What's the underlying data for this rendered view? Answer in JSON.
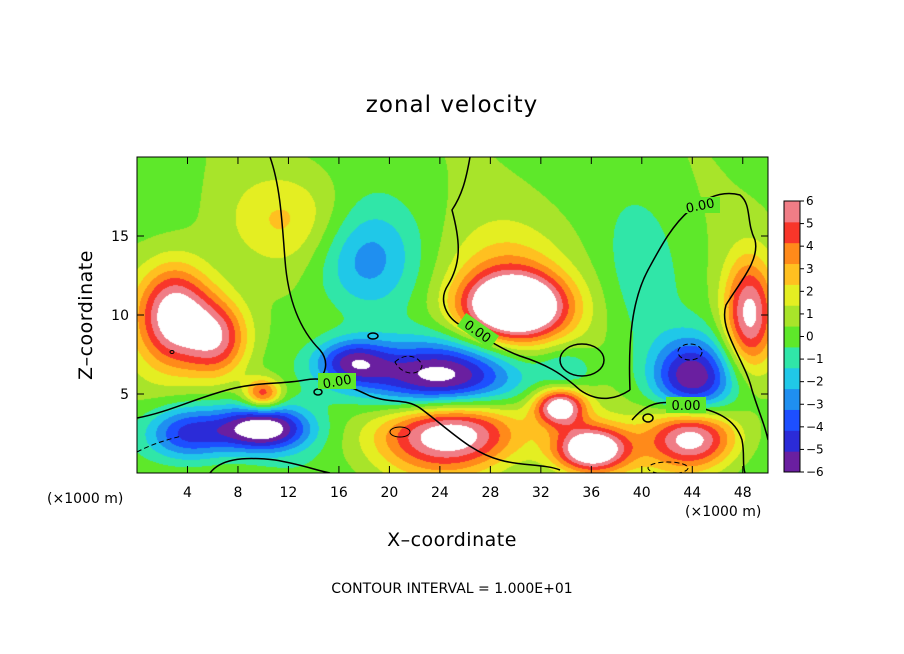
{
  "chart_data": {
    "type": "heatmap",
    "title": "zonal velocity",
    "xlabel": "X–coordinate",
    "ylabel": "Z–coordinate",
    "x_unit_label": "(×1000 m)",
    "y_unit_label": "(×1000 m)",
    "xlim": [
      0,
      50
    ],
    "ylim": [
      0,
      20
    ],
    "x_ticks": [
      4,
      8,
      12,
      16,
      20,
      24,
      28,
      32,
      36,
      40,
      44,
      48
    ],
    "x_tick_labels": [
      "4",
      "8",
      "12",
      "16",
      "20",
      "24",
      "28",
      "32",
      "36",
      "40",
      "44",
      "48"
    ],
    "y_ticks": [
      5,
      10,
      15
    ],
    "y_tick_labels": [
      "5",
      "10",
      "15"
    ],
    "colorbar": {
      "min": -6,
      "max": 6,
      "tick_values": [
        6,
        5,
        4,
        3,
        2,
        1,
        0,
        -1,
        -2,
        -3,
        -4,
        -5,
        -6
      ],
      "tick_labels": [
        "6",
        "5",
        "4",
        "3",
        "2",
        "1",
        "0",
        "−1",
        "−2",
        "−3",
        "−4",
        "−5",
        "−6"
      ],
      "colors": [
        "#6a1fa0",
        "#2b2bd8",
        "#1d4fff",
        "#1f8ff0",
        "#20c8e8",
        "#30e6a8",
        "#5ee82a",
        "#a8e42a",
        "#e4ee22",
        "#ffc020",
        "#ff8a1a",
        "#f8362a",
        "#f07d86"
      ]
    },
    "contour_labels": [
      "0.00",
      "0.00",
      "0.00",
      "0.00"
    ],
    "contour_interval_text": "CONTOUR INTERVAL = 1.000E+01",
    "features": [
      {
        "x": 3,
        "z": 10,
        "value": 7,
        "rx": 3,
        "rz": 3.2
      },
      {
        "x": 6.5,
        "z": 8.5,
        "value": 5,
        "rx": 2.5,
        "rz": 2.5
      },
      {
        "x": 10,
        "z": 5,
        "value": 5,
        "rx": 1.5,
        "rz": 1
      },
      {
        "x": 10,
        "z": 2.8,
        "value": -7,
        "rx": 3.5,
        "rz": 1.4
      },
      {
        "x": 4,
        "z": 2.5,
        "value": -5,
        "rx": 3.5,
        "rz": 1.8
      },
      {
        "x": 18,
        "z": 13.5,
        "value": -3,
        "rx": 4,
        "rz": 3.5
      },
      {
        "x": 17,
        "z": 7,
        "value": -5,
        "rx": 3,
        "rz": 1.5
      },
      {
        "x": 24,
        "z": 5.8,
        "value": -8,
        "rx": 6,
        "rz": 2.4
      },
      {
        "x": 25,
        "z": 2.8,
        "value": 8,
        "rx": 5.5,
        "rz": 2.5
      },
      {
        "x": 30,
        "z": 10.5,
        "value": 8,
        "rx": 4,
        "rz": 2
      },
      {
        "x": 29,
        "z": 11.5,
        "value": 3,
        "rx": 5,
        "rz": 4
      },
      {
        "x": 33.5,
        "z": 4.2,
        "value": 7,
        "rx": 2,
        "rz": 1.2
      },
      {
        "x": 34,
        "z": 6.5,
        "value": -2,
        "rx": 2.2,
        "rz": 1.5
      },
      {
        "x": 36,
        "z": 1.5,
        "value": 8,
        "rx": 3,
        "rz": 1.5
      },
      {
        "x": 44,
        "z": 6,
        "value": -6,
        "rx": 3.2,
        "rz": 2.5
      },
      {
        "x": 44,
        "z": 2.3,
        "value": 7,
        "rx": 3.5,
        "rz": 2
      },
      {
        "x": 48.5,
        "z": 10,
        "value": 6,
        "rx": 2,
        "rz": 3.5
      },
      {
        "x": 40,
        "z": 13,
        "value": -1,
        "rx": 3,
        "rz": 5
      },
      {
        "x": 12,
        "z": 16,
        "value": 2,
        "rx": 5,
        "rz": 3
      }
    ]
  }
}
